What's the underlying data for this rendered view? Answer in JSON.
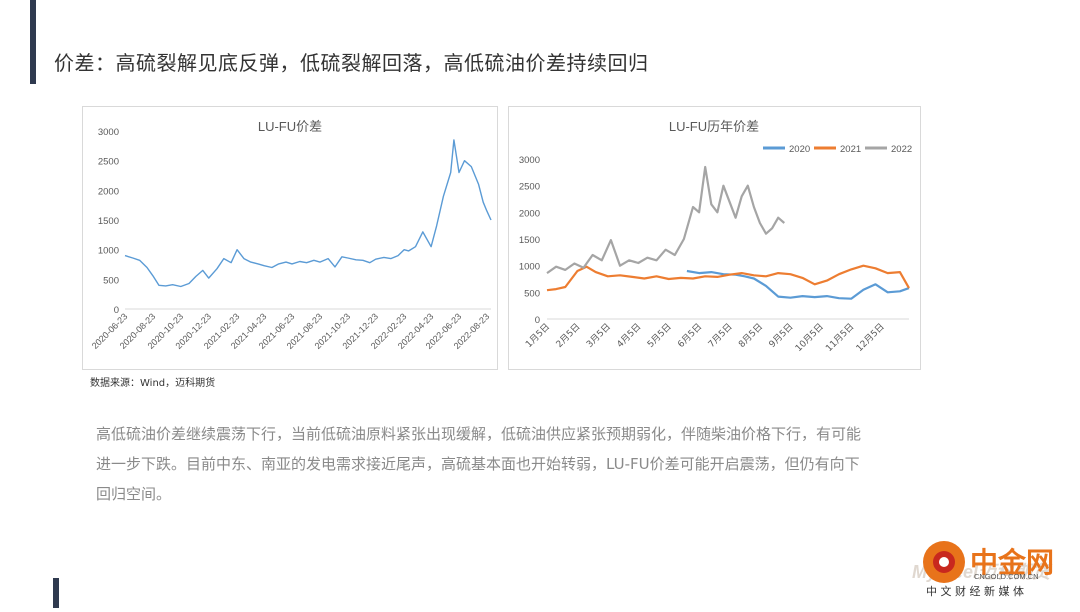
{
  "page": {
    "title": "价差：高硫裂解见底反弹，低硫裂解回落，高低硫油价差持续回归",
    "source": "数据来源：Wind，迈科期货",
    "paragraph": [
      "高低硫油价差继续震荡下行，当前低硫油原料紧张出现缓解，低硫油供应紧张预期弱化，伴随柴油价格下行，有可能",
      "进一步下跌。目前中东、南亚的发电需求接近尾声，高硫基本面也开始转弱，LU-FU价差可能开启震荡，但仍有向下",
      "回归空间。"
    ],
    "logo": {
      "name": "中金网",
      "domain": "CNGOLD.COM.CN",
      "tagline": "中 文 财 经 新 媒 体",
      "watermark": "Mysteel迈科期货",
      "colors": {
        "orange": "#e8731a",
        "red": "#c8281e"
      }
    }
  },
  "chart_data": [
    {
      "type": "line",
      "title": "LU-FU价差",
      "xlabel": "",
      "ylabel": "",
      "ylim": [
        0,
        3000
      ],
      "yticks": [
        0,
        500,
        1000,
        1500,
        2000,
        2500,
        3000
      ],
      "xticks": [
        "2020-06-23",
        "2020-08-23",
        "2020-10-23",
        "2020-12-23",
        "2021-02-23",
        "2021-04-23",
        "2021-06-23",
        "2021-08-23",
        "2021-10-23",
        "2021-12-23",
        "2022-02-23",
        "2022-04-23",
        "2022-06-23",
        "2022-08-23"
      ],
      "grid": false,
      "legend": "none",
      "series": [
        {
          "color": "#5b9bd5",
          "x": [
            "2020-06-23",
            "2020-07-10",
            "2020-07-25",
            "2020-08-10",
            "2020-08-23",
            "2020-09-05",
            "2020-09-20",
            "2020-10-05",
            "2020-10-23",
            "2020-11-10",
            "2020-11-25",
            "2020-12-10",
            "2020-12-23",
            "2021-01-10",
            "2021-01-25",
            "2021-02-10",
            "2021-02-23",
            "2021-03-10",
            "2021-03-25",
            "2021-04-10",
            "2021-04-23",
            "2021-05-10",
            "2021-05-25",
            "2021-06-10",
            "2021-06-23",
            "2021-07-10",
            "2021-07-25",
            "2021-08-10",
            "2021-08-23",
            "2021-09-10",
            "2021-09-25",
            "2021-10-10",
            "2021-10-23",
            "2021-11-10",
            "2021-11-25",
            "2021-12-10",
            "2021-12-23",
            "2022-01-10",
            "2022-01-25",
            "2022-02-10",
            "2022-02-23",
            "2022-03-05",
            "2022-03-20",
            "2022-04-05",
            "2022-04-23",
            "2022-05-05",
            "2022-05-20",
            "2022-06-05",
            "2022-06-12",
            "2022-06-23",
            "2022-07-05",
            "2022-07-20",
            "2022-08-05",
            "2022-08-15",
            "2022-08-23",
            "2022-09-01"
          ],
          "values": [
            900,
            860,
            820,
            700,
            560,
            400,
            390,
            410,
            380,
            430,
            550,
            650,
            520,
            680,
            850,
            780,
            1000,
            850,
            790,
            760,
            730,
            700,
            760,
            790,
            760,
            800,
            780,
            820,
            790,
            850,
            710,
            880,
            860,
            830,
            820,
            780,
            840,
            870,
            850,
            900,
            1000,
            980,
            1050,
            1300,
            1050,
            1400,
            1900,
            2300,
            2850,
            2300,
            2500,
            2400,
            2100,
            1800,
            1650,
            1500
          ]
        }
      ]
    },
    {
      "type": "line",
      "title": "LU-FU历年价差",
      "xlabel": "",
      "ylabel": "",
      "ylim": [
        0,
        3000
      ],
      "yticks": [
        0,
        500,
        1000,
        1500,
        2000,
        2500,
        3000
      ],
      "categories": [
        "1月5日",
        "2月5日",
        "3月5日",
        "4月5日",
        "5月5日",
        "6月5日",
        "7月5日",
        "8月5日",
        "9月5日",
        "10月5日",
        "11月5日",
        "12月5日"
      ],
      "grid": false,
      "legend": "top-right",
      "series": [
        {
          "name": "2020",
          "color": "#5b9bd5",
          "x": [
            5.6,
            6.0,
            6.4,
            6.8,
            7.2,
            7.5,
            7.8,
            8.2,
            8.6,
            9.0,
            9.4,
            9.8,
            10.2,
            10.6,
            11.0,
            11.4,
            11.8,
            12.2,
            12.6,
            12.9
          ],
          "values": [
            900,
            860,
            880,
            840,
            830,
            800,
            760,
            620,
            420,
            400,
            430,
            410,
            430,
            390,
            380,
            550,
            650,
            500,
            520,
            580
          ]
        },
        {
          "name": "2021",
          "color": "#ed7d31",
          "x": [
            1,
            1.3,
            1.6,
            2.0,
            2.3,
            2.6,
            3.0,
            3.4,
            3.8,
            4.2,
            4.6,
            5.0,
            5.4,
            5.8,
            6.2,
            6.6,
            7.0,
            7.4,
            7.8,
            8.2,
            8.6,
            9.0,
            9.4,
            9.8,
            10.2,
            10.6,
            11.0,
            11.4,
            11.8,
            12.2,
            12.6,
            12.9
          ],
          "values": [
            540,
            560,
            600,
            900,
            980,
            880,
            800,
            820,
            790,
            760,
            800,
            750,
            770,
            760,
            800,
            790,
            830,
            860,
            820,
            800,
            860,
            840,
            770,
            650,
            720,
            840,
            930,
            1000,
            950,
            860,
            880,
            580
          ]
        },
        {
          "name": "2022",
          "color": "#a5a5a5",
          "x": [
            1,
            1.3,
            1.6,
            1.9,
            2.2,
            2.5,
            2.8,
            3.1,
            3.4,
            3.7,
            4.0,
            4.3,
            4.6,
            4.9,
            5.2,
            5.5,
            5.8,
            6.0,
            6.2,
            6.4,
            6.6,
            6.8,
            7.0,
            7.2,
            7.4,
            7.6,
            7.8,
            8.0,
            8.2,
            8.4,
            8.6,
            8.8
          ],
          "values": [
            860,
            980,
            920,
            1040,
            960,
            1200,
            1100,
            1480,
            1000,
            1100,
            1050,
            1150,
            1100,
            1300,
            1200,
            1500,
            2100,
            2000,
            2850,
            2150,
            2000,
            2500,
            2200,
            1900,
            2300,
            2500,
            2100,
            1800,
            1600,
            1700,
            1900,
            1800
          ]
        }
      ]
    }
  ]
}
